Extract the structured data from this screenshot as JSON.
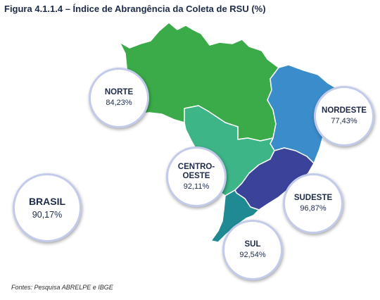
{
  "title": "Figura 4.1.1.4 – Índice de Abrangência da Coleta de RSU (%)",
  "source": "Fontes: Pesquisa ABRELPE e IBGE",
  "colors": {
    "norte": "#3aab48",
    "nordeste": "#3a8cca",
    "centro_oeste": "#3db587",
    "sudeste": "#3a429a",
    "sul": "#1f8a92",
    "bubble_border": "#c3cbea",
    "text": "#1d2b48"
  },
  "regions": {
    "norte": {
      "name": "NORTE",
      "value": "84,23%"
    },
    "nordeste": {
      "name": "NORDESTE",
      "value": "77,43%"
    },
    "centro_oeste": {
      "name": "CENTRO-OESTE",
      "value": "92,11%"
    },
    "sudeste": {
      "name": "SUDESTE",
      "value": "96,87%"
    },
    "sul": {
      "name": "SUL",
      "value": "92,54%"
    }
  },
  "brasil": {
    "name": "BRASIL",
    "value": "90,17%"
  }
}
